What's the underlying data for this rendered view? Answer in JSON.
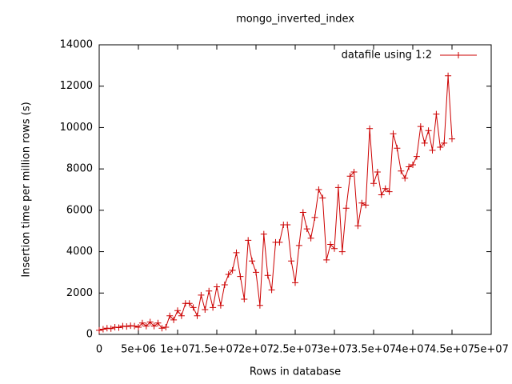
{
  "chart_data": {
    "type": "line",
    "title": "mongo_inverted_index",
    "x_label": "Rows in database",
    "y_label": "Insertion time per million rows (s)",
    "xlim": [
      0,
      50000000
    ],
    "ylim": [
      0,
      14000
    ],
    "xticks": [
      0,
      {
        "value": 5000000,
        "label": "5e+06"
      },
      {
        "value": 10000000,
        "label": "1e+07"
      },
      {
        "value": 15000000,
        "label": "1.5e+07"
      },
      {
        "value": 20000000,
        "label": "2e+07"
      },
      {
        "value": 25000000,
        "label": "2.5e+07"
      },
      {
        "value": 30000000,
        "label": "3e+07"
      },
      {
        "value": 35000000,
        "label": "3.5e+07"
      },
      {
        "value": 40000000,
        "label": "4e+07"
      },
      {
        "value": 45000000,
        "label": "4.5e+07"
      },
      {
        "value": 50000000,
        "label": "5e+07"
      }
    ],
    "yticks": [
      0,
      2000,
      4000,
      6000,
      8000,
      10000,
      12000,
      14000
    ],
    "legend": "top-right",
    "x": [
      0,
      500000,
      1000000,
      1500000,
      2000000,
      2500000,
      3000000,
      3500000,
      4000000,
      4500000,
      5000000,
      5500000,
      6000000,
      6500000,
      7000000,
      7500000,
      8000000,
      8500000,
      9000000,
      9500000,
      10000000,
      10500000,
      11000000,
      11500000,
      12000000,
      12500000,
      13000000,
      13500000,
      14000000,
      14500000,
      15000000,
      15500000,
      16000000,
      16500000,
      17000000,
      17500000,
      18000000,
      18500000,
      19000000,
      19500000,
      20000000,
      20500000,
      21000000,
      21500000,
      22000000,
      22500000,
      23000000,
      23500000,
      24000000,
      24500000,
      25000000,
      25500000,
      26000000,
      26500000,
      27000000,
      27500000,
      28000000,
      28500000,
      29000000,
      29500000,
      30000000,
      30500000,
      31000000,
      31500000,
      32000000,
      32500000,
      33000000,
      33500000,
      34000000,
      34500000,
      35000000,
      35500000,
      36000000,
      36500000,
      37000000,
      37500000,
      38000000,
      38500000,
      39000000,
      39500000,
      40000000,
      40500000,
      41000000,
      41500000,
      42000000,
      42500000,
      43000000,
      43500000,
      44000000,
      44500000,
      45000000
    ],
    "series": [
      {
        "name": "datafile using 1:2",
        "color": "#cc0000",
        "values": [
          200,
          250,
          300,
          280,
          350,
          330,
          400,
          380,
          420,
          400,
          350,
          550,
          400,
          600,
          400,
          550,
          300,
          350,
          900,
          700,
          1150,
          900,
          1500,
          1500,
          1300,
          900,
          1900,
          1200,
          2100,
          1300,
          2300,
          1400,
          2400,
          2900,
          3100,
          3950,
          2800,
          1700,
          4550,
          3550,
          3000,
          1400,
          4850,
          2850,
          2150,
          4450,
          4450,
          5300,
          5300,
          3550,
          2500,
          4300,
          5900,
          5100,
          4650,
          5650,
          7000,
          6600,
          3600,
          4350,
          4150,
          7100,
          4000,
          6100,
          7650,
          7850,
          5250,
          6350,
          6250,
          9950,
          7300,
          7850,
          6750,
          7050,
          6900,
          9700,
          9000,
          7900,
          7550,
          8100,
          8200,
          8600,
          10050,
          9250,
          9850,
          8900,
          10650,
          9050,
          9250,
          12500,
          9450
        ]
      }
    ]
  }
}
